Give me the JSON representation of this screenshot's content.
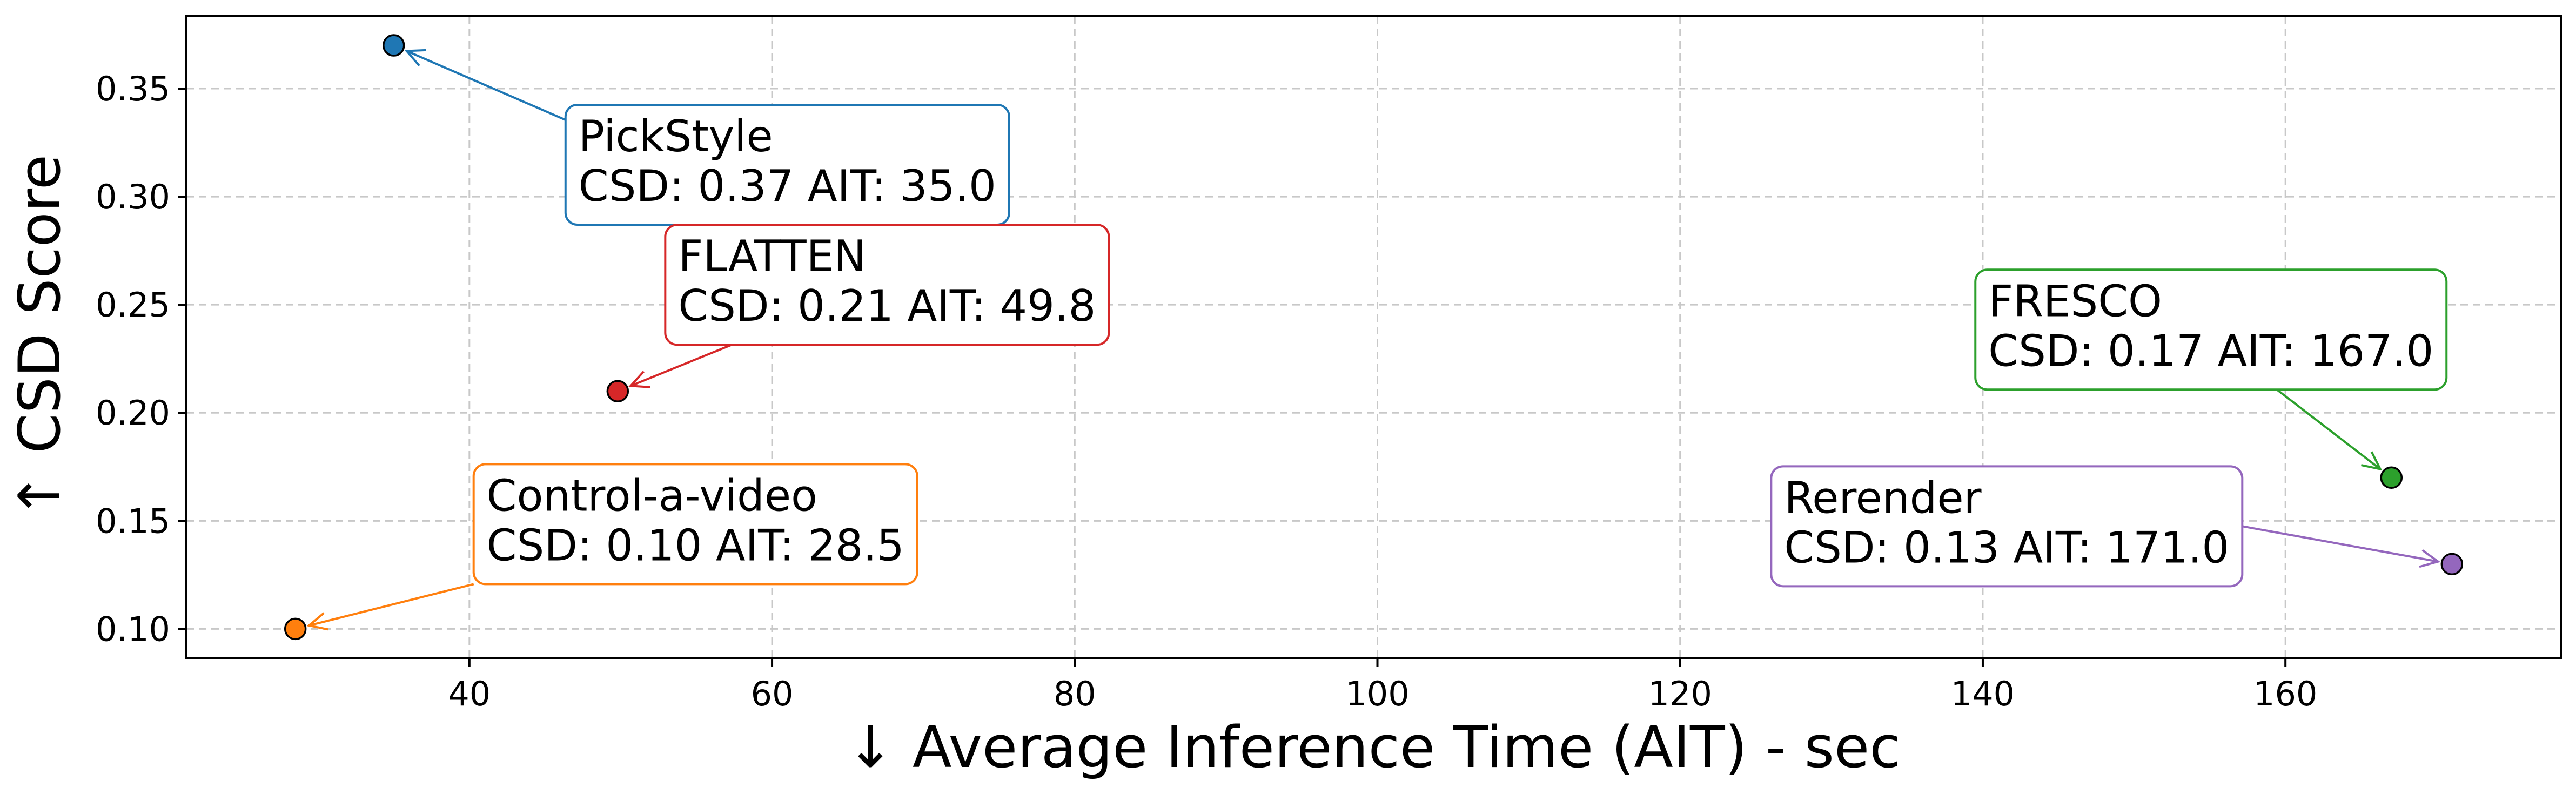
{
  "chart_data": {
    "type": "scatter",
    "title": "",
    "xlabel": "↓ Average Inference Time (AIT) - sec",
    "ylabel": "↑ CSD Score",
    "xlim": [
      21.3,
      178.2
    ],
    "ylim": [
      0.0866,
      0.3835
    ],
    "xticks": [
      40,
      60,
      80,
      100,
      120,
      140,
      160
    ],
    "xtick_labels": [
      "40",
      "60",
      "80",
      "100",
      "120",
      "140",
      "160"
    ],
    "yticks": [
      0.1,
      0.15,
      0.2,
      0.25,
      0.3,
      0.35
    ],
    "ytick_labels": [
      "0.10",
      "0.15",
      "0.20",
      "0.25",
      "0.30",
      "0.35"
    ],
    "grid": true,
    "legend": "none",
    "points": [
      {
        "name": "PickStyle",
        "x": 35.0,
        "y": 0.37,
        "color": "#1f77b4",
        "label_line1": "PickStyle",
        "label_line2": "CSD: 0.37  AIT: 35.0",
        "label_anchor": "lower-right"
      },
      {
        "name": "FLATTEN",
        "x": 49.8,
        "y": 0.21,
        "color": "#d62728",
        "label_line1": "FLATTEN",
        "label_line2": "CSD: 0.21  AIT: 49.8",
        "label_anchor": "upper-right"
      },
      {
        "name": "Control-a-video",
        "x": 28.5,
        "y": 0.1,
        "color": "#ff7f0e",
        "label_line1": "Control-a-video",
        "label_line2": "CSD: 0.10  AIT: 28.5",
        "label_anchor": "upper-right"
      },
      {
        "name": "FRESCO",
        "x": 167.0,
        "y": 0.17,
        "color": "#2ca02c",
        "label_line1": "FRESCO",
        "label_line2": "CSD: 0.17  AIT: 167.0",
        "label_anchor": "upper-left"
      },
      {
        "name": "Rerender",
        "x": 171.0,
        "y": 0.13,
        "color": "#9467bd",
        "label_line1": "Rerender",
        "label_line2": "CSD: 0.13  AIT: 171.0",
        "label_anchor": "left"
      }
    ]
  }
}
